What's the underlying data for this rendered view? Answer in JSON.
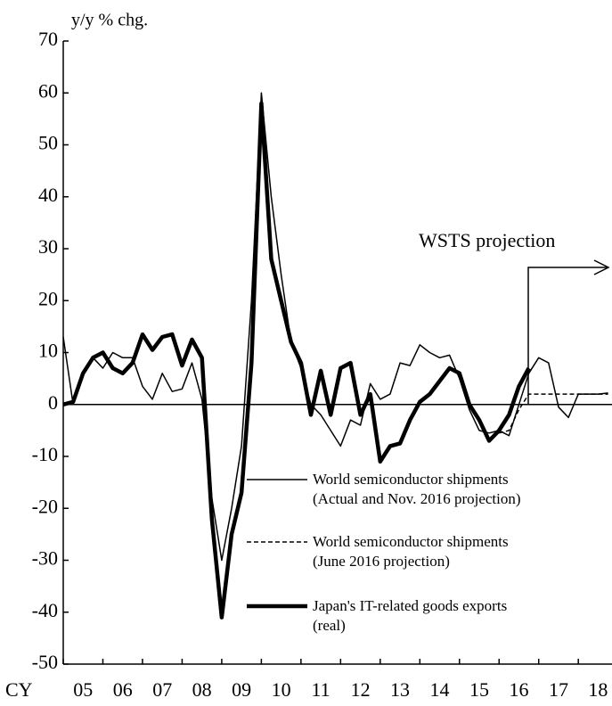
{
  "chart_data": {
    "type": "line",
    "y_label": "y/y % chg.",
    "x_label": "CY",
    "x": [
      2005,
      2005.25,
      2005.5,
      2005.75,
      2006,
      2006.25,
      2006.5,
      2006.75,
      2007,
      2007.25,
      2007.5,
      2007.75,
      2008,
      2008.25,
      2008.5,
      2008.75,
      2009,
      2009.25,
      2009.5,
      2009.75,
      2010,
      2010.25,
      2010.5,
      2010.75,
      2011,
      2011.25,
      2011.5,
      2011.75,
      2012,
      2012.25,
      2012.5,
      2012.75,
      2013,
      2013.25,
      2013.5,
      2013.75,
      2014,
      2014.25,
      2014.5,
      2014.75,
      2015,
      2015.25,
      2015.5,
      2015.75,
      2016,
      2016.25,
      2016.5,
      2016.75,
      2017,
      2017.25,
      2017.5,
      2017.75,
      2018,
      2018.25,
      2018.5,
      2018.75
    ],
    "series": [
      {
        "name": "World semiconductor shipments\n(Actual and Nov. 2016 projection)",
        "color": "#000000",
        "style": "thin",
        "values": [
          13,
          0,
          6,
          9,
          7,
          10,
          9,
          9,
          3.5,
          1,
          6,
          2.5,
          3,
          8,
          1,
          -18,
          -30,
          -20,
          -8,
          20,
          60,
          40,
          25,
          12,
          7,
          0,
          -2,
          -5,
          -8,
          -3,
          -4,
          4,
          1,
          2,
          8,
          7.5,
          11.5,
          10,
          9,
          9.5,
          5,
          -1,
          -5,
          -5.5,
          -5,
          -6,
          0,
          6,
          9,
          8,
          -0.5,
          -2.5,
          2,
          2,
          2,
          2.2
        ]
      },
      {
        "name": "World semiconductor shipments\n(June 2016 projection)",
        "color": "#000000",
        "style": "dashed",
        "values": [
          null,
          null,
          null,
          null,
          null,
          null,
          null,
          null,
          null,
          null,
          null,
          null,
          null,
          null,
          null,
          null,
          null,
          null,
          null,
          null,
          null,
          null,
          null,
          null,
          null,
          null,
          null,
          null,
          null,
          null,
          null,
          null,
          null,
          null,
          null,
          null,
          null,
          null,
          null,
          null,
          null,
          null,
          null,
          null,
          -5.5,
          -5,
          -1,
          2,
          2,
          2,
          2,
          2,
          2,
          2,
          2,
          2
        ]
      },
      {
        "name": "Japan's IT-related goods exports\n(real)",
        "color": "#000000",
        "style": "thick",
        "values": [
          0,
          0.5,
          6,
          9,
          10,
          7,
          6,
          8,
          13.5,
          10.5,
          13,
          13.5,
          7.5,
          12.5,
          9,
          -22,
          -41,
          -25,
          -17,
          8,
          58,
          28,
          20,
          12,
          8,
          -2,
          6.5,
          -2,
          7,
          8,
          -2,
          2,
          -11,
          -8,
          -7.5,
          -3,
          0.5,
          2,
          4.5,
          7,
          6,
          0,
          -3,
          -7,
          -5,
          -2,
          3.5,
          7,
          null,
          null,
          null,
          null,
          null,
          null,
          null,
          null
        ]
      }
    ],
    "xlim": [
      2005,
      2018.85
    ],
    "xticks": [
      2005,
      2006,
      2007,
      2008,
      2009,
      2010,
      2011,
      2012,
      2013,
      2014,
      2015,
      2016,
      2017,
      2018
    ],
    "xlabels": [
      {
        "value": 2005.5,
        "label": "05"
      },
      {
        "value": 2006.5,
        "label": "06"
      },
      {
        "value": 2007.5,
        "label": "07"
      },
      {
        "value": 2008.5,
        "label": "08"
      },
      {
        "value": 2009.5,
        "label": "09"
      },
      {
        "value": 2010.5,
        "label": "10"
      },
      {
        "value": 2011.5,
        "label": "11"
      },
      {
        "value": 2012.5,
        "label": "12"
      },
      {
        "value": 2013.5,
        "label": "13"
      },
      {
        "value": 2014.5,
        "label": "14"
      },
      {
        "value": 2015.5,
        "label": "15"
      },
      {
        "value": 2016.5,
        "label": "16"
      },
      {
        "value": 2017.5,
        "label": "17"
      },
      {
        "value": 2018.5,
        "label": "18"
      }
    ],
    "ylim": [
      -50,
      70
    ],
    "yticks": [
      -50,
      -40,
      -30,
      -20,
      -10,
      0,
      10,
      20,
      30,
      40,
      50,
      60,
      70
    ],
    "annotation": "WSTS projection"
  }
}
